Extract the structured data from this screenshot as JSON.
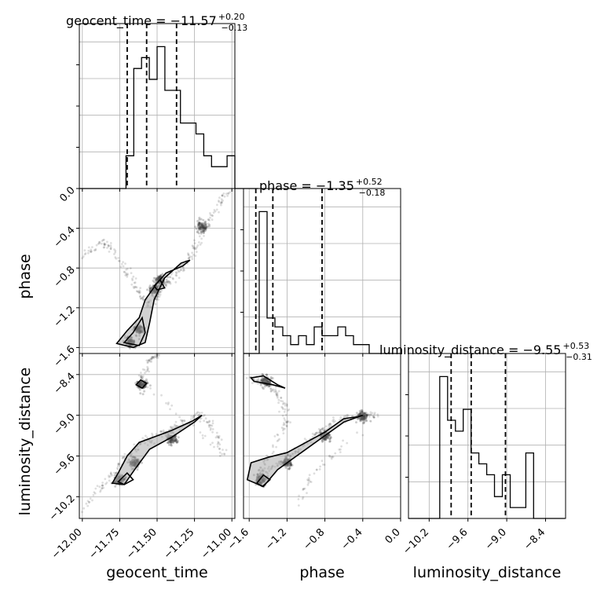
{
  "chart_data": {
    "type": "corner",
    "parameters": [
      "geocent_time",
      "phase",
      "luminosity_distance"
    ],
    "axis_labels": [
      "geocent_time",
      "phase",
      "luminosity_distance"
    ],
    "titles": [
      {
        "main": "geocent_time = ",
        "value": "−11.57",
        "plus": "+0.20",
        "minus": "−0.13"
      },
      {
        "main": "phase = ",
        "value": "−1.35",
        "plus": "+0.52",
        "minus": "−0.18"
      },
      {
        "main": "luminosity_distance = ",
        "value": "−9.55",
        "plus": "+0.53",
        "minus": "−0.31"
      }
    ],
    "ranges": [
      [
        -12.02,
        -10.98
      ],
      [
        -1.66,
        0.0
      ],
      [
        -10.52,
        -8.09
      ]
    ],
    "ticks": {
      "geocent_time": {
        "values": [
          -12.0,
          -11.75,
          -11.5,
          -11.25,
          -11.0
        ],
        "labels": [
          "−12.00",
          "−11.75",
          "−11.50",
          "−11.25",
          "−11.00"
        ]
      },
      "phase": {
        "values": [
          -1.6,
          -1.2,
          -0.8,
          -0.4,
          0.0
        ],
        "labels": [
          "−1.6",
          "−1.2",
          "−0.8",
          "−0.4",
          "0.0"
        ]
      },
      "luminosity_distance": {
        "values": [
          -10.2,
          -9.6,
          -9.0,
          -8.4
        ],
        "labels": [
          "−10.2",
          "−9.6",
          "−9.0",
          "−8.4"
        ]
      }
    },
    "quantiles": [
      [
        -11.7,
        -11.57,
        -11.37
      ],
      [
        -1.53,
        -1.35,
        -0.83
      ],
      [
        -9.86,
        -9.55,
        -9.02
      ]
    ],
    "histograms": [
      {
        "edges_start": -12.02,
        "bin_width": 0.052,
        "counts": [
          0,
          0,
          0,
          0,
          0,
          0,
          3,
          11,
          12,
          10,
          13,
          9,
          9,
          6,
          6,
          5,
          3,
          2,
          2,
          3,
          0,
          0,
          0,
          0
        ]
      },
      {
        "edges_start": -1.66,
        "bin_width": 0.083,
        "counts": [
          0,
          0,
          16,
          4,
          3,
          2,
          1,
          2,
          1,
          3,
          2,
          2,
          3,
          2,
          1,
          1,
          0,
          0,
          0,
          0,
          0
        ]
      },
      {
        "edges_start": -10.52,
        "bin_width": 0.121,
        "counts": [
          0,
          0,
          0,
          0,
          13,
          9,
          8,
          10,
          6,
          5,
          4,
          2,
          4,
          1,
          1,
          6,
          0,
          0,
          0,
          0
        ]
      }
    ],
    "pairs": [
      {
        "x": "geocent_time",
        "y": "phase",
        "sample_track": [
          [
            -12.02,
            -0.7
          ],
          [
            -11.88,
            -0.55
          ],
          [
            -11.8,
            -0.6
          ],
          [
            -11.7,
            -0.85
          ],
          [
            -11.62,
            -1.05
          ],
          [
            -11.55,
            -1.18
          ],
          [
            -11.48,
            -1.05
          ],
          [
            -11.4,
            -0.9
          ],
          [
            -11.32,
            -0.78
          ],
          [
            -11.24,
            -0.6
          ],
          [
            -11.18,
            -0.4
          ],
          [
            -11.1,
            -0.18
          ],
          [
            -11.03,
            -0.05
          ]
        ],
        "density_peaks": [
          [
            -11.68,
            -1.55
          ],
          [
            -11.62,
            -1.42
          ],
          [
            -11.52,
            -1.02
          ],
          [
            -11.48,
            -0.92
          ],
          [
            -11.2,
            -0.38
          ]
        ],
        "contour_levels": [
          [
            [
              -11.77,
              -1.56
            ],
            [
              -11.7,
              -1.43
            ],
            [
              -11.62,
              -1.3
            ],
            [
              -11.58,
              -1.12
            ],
            [
              -11.5,
              -0.95
            ],
            [
              -11.44,
              -0.85
            ],
            [
              -11.33,
              -0.78
            ],
            [
              -11.28,
              -0.72
            ],
            [
              -11.34,
              -0.75
            ],
            [
              -11.45,
              -0.9
            ],
            [
              -11.52,
              -1.12
            ],
            [
              -11.55,
              -1.35
            ],
            [
              -11.58,
              -1.55
            ],
            [
              -11.66,
              -1.6
            ],
            [
              -11.77,
              -1.56
            ]
          ],
          [
            [
              -11.72,
              -1.55
            ],
            [
              -11.66,
              -1.45
            ],
            [
              -11.6,
              -1.3
            ],
            [
              -11.58,
              -1.45
            ],
            [
              -11.62,
              -1.58
            ],
            [
              -11.72,
              -1.55
            ]
          ],
          [
            [
              -11.52,
              -0.98
            ],
            [
              -11.48,
              -0.92
            ],
            [
              -11.45,
              -1.0
            ],
            [
              -11.5,
              -1.02
            ],
            [
              -11.52,
              -0.98
            ]
          ]
        ]
      },
      {
        "x": "geocent_time",
        "y": "luminosity_distance",
        "sample_track": [
          [
            -12.0,
            -10.4
          ],
          [
            -11.85,
            -10.0
          ],
          [
            -11.75,
            -9.7
          ],
          [
            -11.6,
            -9.4
          ],
          [
            -11.5,
            -9.3
          ],
          [
            -11.4,
            -9.2
          ],
          [
            -11.3,
            -9.1
          ],
          [
            -11.2,
            -9.0
          ],
          [
            -11.12,
            -9.2
          ],
          [
            -11.05,
            -9.6
          ],
          [
            -11.6,
            -8.5
          ],
          [
            -11.55,
            -8.2
          ],
          [
            -11.5,
            -8.1
          ]
        ],
        "density_peaks": [
          [
            -11.75,
            -9.95
          ],
          [
            -11.65,
            -9.7
          ],
          [
            -11.6,
            -8.55
          ],
          [
            -11.4,
            -9.35
          ]
        ],
        "contour_levels": [
          [
            [
              -11.8,
              -10.0
            ],
            [
              -11.76,
              -9.85
            ],
            [
              -11.7,
              -9.6
            ],
            [
              -11.62,
              -9.4
            ],
            [
              -11.52,
              -9.32
            ],
            [
              -11.4,
              -9.22
            ],
            [
              -11.26,
              -9.08
            ],
            [
              -11.2,
              -9.0
            ],
            [
              -11.25,
              -9.1
            ],
            [
              -11.4,
              -9.32
            ],
            [
              -11.55,
              -9.5
            ],
            [
              -11.65,
              -9.8
            ],
            [
              -11.72,
              -10.02
            ],
            [
              -11.8,
              -10.0
            ]
          ],
          [
            [
              -11.64,
              -8.55
            ],
            [
              -11.61,
              -8.48
            ],
            [
              -11.57,
              -8.53
            ],
            [
              -11.6,
              -8.6
            ],
            [
              -11.64,
              -8.55
            ]
          ],
          [
            [
              -11.76,
              -9.98
            ],
            [
              -11.7,
              -9.85
            ],
            [
              -11.66,
              -9.95
            ],
            [
              -11.72,
              -10.02
            ],
            [
              -11.76,
              -9.98
            ]
          ]
        ]
      },
      {
        "x": "phase",
        "y": "luminosity_distance",
        "sample_track": [
          [
            -1.6,
            -8.45
          ],
          [
            -1.45,
            -8.5
          ],
          [
            -1.35,
            -8.6
          ],
          [
            -1.25,
            -8.8
          ],
          [
            -1.2,
            -9.1
          ],
          [
            -1.4,
            -9.6
          ],
          [
            -1.5,
            -9.9
          ],
          [
            -1.3,
            -9.7
          ],
          [
            -1.0,
            -9.4
          ],
          [
            -0.8,
            -9.2
          ],
          [
            -0.6,
            -9.05
          ],
          [
            -0.4,
            -9.0
          ],
          [
            -0.25,
            -9.0
          ],
          [
            -0.9,
            -9.8
          ],
          [
            -1.1,
            -10.3
          ]
        ],
        "density_peaks": [
          [
            -1.48,
            -9.95
          ],
          [
            -1.42,
            -8.5
          ],
          [
            -1.2,
            -9.7
          ],
          [
            -0.8,
            -9.3
          ],
          [
            -0.4,
            -9.02
          ]
        ],
        "contour_levels": [
          [
            [
              -1.62,
              -9.95
            ],
            [
              -1.58,
              -9.7
            ],
            [
              -1.4,
              -9.62
            ],
            [
              -1.2,
              -9.55
            ],
            [
              -1.0,
              -9.4
            ],
            [
              -0.8,
              -9.25
            ],
            [
              -0.6,
              -9.05
            ],
            [
              -0.45,
              -9.02
            ],
            [
              -0.4,
              -9.0
            ],
            [
              -0.6,
              -9.1
            ],
            [
              -0.85,
              -9.35
            ],
            [
              -1.05,
              -9.55
            ],
            [
              -1.3,
              -9.8
            ],
            [
              -1.45,
              -10.05
            ],
            [
              -1.62,
              -9.95
            ]
          ],
          [
            [
              -1.58,
              -8.45
            ],
            [
              -1.45,
              -8.42
            ],
            [
              -1.3,
              -8.55
            ],
            [
              -1.22,
              -8.6
            ],
            [
              -1.35,
              -8.55
            ],
            [
              -1.55,
              -8.5
            ],
            [
              -1.58,
              -8.45
            ]
          ],
          [
            [
              -1.52,
              -10.0
            ],
            [
              -1.45,
              -9.88
            ],
            [
              -1.38,
              -9.95
            ],
            [
              -1.46,
              -10.05
            ],
            [
              -1.52,
              -10.0
            ]
          ]
        ]
      }
    ],
    "grid": true
  }
}
